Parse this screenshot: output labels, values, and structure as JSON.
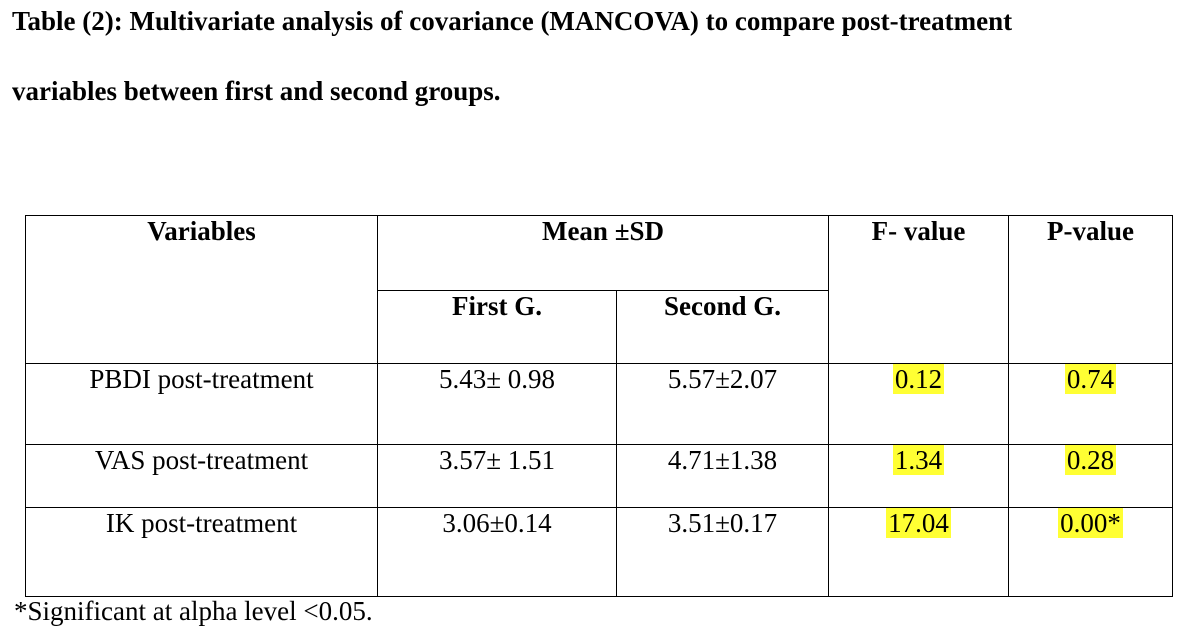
{
  "caption": {
    "line1": "Table (2): Multivariate analysis of covariance (MANCOVA) to compare post-treatment",
    "line2": "variables between first and second groups."
  },
  "table": {
    "headers": {
      "variables": "Variables",
      "mean_sd": "Mean ±SD",
      "f_value": "F- value",
      "p_value": "P-value",
      "first_group": "First G.",
      "second_group": "Second G."
    },
    "rows": [
      {
        "variable": "PBDI post-treatment",
        "first": "5.43± 0.98",
        "second": "5.57±2.07",
        "f": "0.12",
        "p": "0.74"
      },
      {
        "variable": "VAS post-treatment",
        "first": "3.57± 1.51",
        "second": "4.71±1.38",
        "f": "1.34",
        "p": "0.28"
      },
      {
        "variable": "IK post-treatment",
        "first": "3.06±0.14",
        "second": "3.51±0.17",
        "f": "17.04",
        "p": "0.00*"
      }
    ],
    "highlight_color": "#ffff33"
  },
  "footnote": "*Significant at alpha level <0.05."
}
